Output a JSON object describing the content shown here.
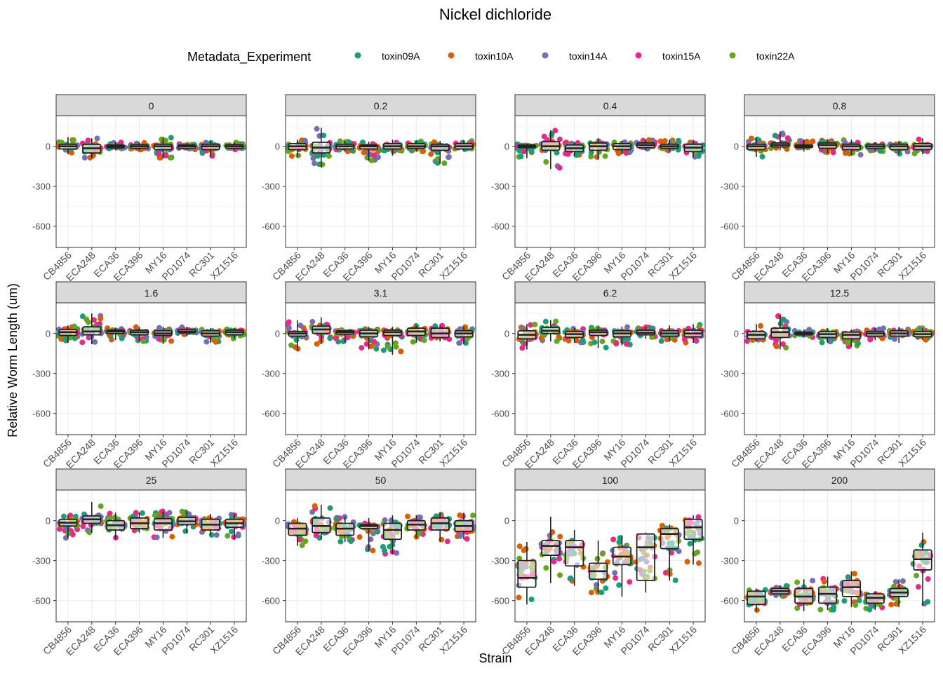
{
  "chart_data": {
    "type": "faceted-box-jitter",
    "title": "Nickel dichloride",
    "xlabel": "Strain",
    "ylabel": "Relative Worm Length (um)",
    "ylim": [
      -760,
      230
    ],
    "yticks": [
      0,
      -300,
      -600
    ],
    "ytick_labels": [
      "0",
      "-300",
      "-600"
    ],
    "categories": [
      "CB4856",
      "ECA248",
      "ECA36",
      "ECA396",
      "MY16",
      "PD1074",
      "RC301",
      "XZ1516"
    ],
    "legend": {
      "title": "Metadata_Experiment",
      "position": "top",
      "entries": [
        {
          "name": "toxin09A",
          "color": "#1b9e77"
        },
        {
          "name": "toxin10A",
          "color": "#d95f02"
        },
        {
          "name": "toxin14A",
          "color": "#7570b3"
        },
        {
          "name": "toxin15A",
          "color": "#e7298a"
        },
        {
          "name": "toxin22A",
          "color": "#66a61e"
        }
      ]
    },
    "facets": [
      {
        "label": "0",
        "medians": [
          0,
          -15,
          0,
          0,
          0,
          0,
          0,
          0
        ],
        "iqr": [
          [
            -20,
            15
          ],
          [
            -50,
            15
          ],
          [
            -12,
            10
          ],
          [
            -15,
            12
          ],
          [
            -25,
            15
          ],
          [
            -15,
            10
          ],
          [
            -25,
            15
          ],
          [
            -15,
            12
          ]
        ],
        "extremes": [
          [
            -60,
            70
          ],
          [
            -90,
            60
          ],
          [
            -30,
            30
          ],
          [
            -30,
            30
          ],
          [
            -90,
            70
          ],
          [
            -30,
            25
          ],
          [
            -80,
            40
          ],
          [
            -30,
            30
          ]
        ]
      },
      {
        "label": "0.2",
        "medians": [
          0,
          -10,
          0,
          0,
          0,
          0,
          0,
          0
        ],
        "iqr": [
          [
            -25,
            20
          ],
          [
            -50,
            30
          ],
          [
            -20,
            15
          ],
          [
            -20,
            10
          ],
          [
            -20,
            20
          ],
          [
            -15,
            20
          ],
          [
            -30,
            15
          ],
          [
            -20,
            20
          ]
        ],
        "extremes": [
          [
            -80,
            50
          ],
          [
            -160,
            140
          ],
          [
            -40,
            40
          ],
          [
            -110,
            35
          ],
          [
            -70,
            50
          ],
          [
            -40,
            40
          ],
          [
            -130,
            40
          ],
          [
            -40,
            45
          ]
        ]
      },
      {
        "label": "0.4",
        "medians": [
          0,
          0,
          -15,
          0,
          0,
          10,
          0,
          -10
        ],
        "iqr": [
          [
            -10,
            10
          ],
          [
            -30,
            35
          ],
          [
            -40,
            10
          ],
          [
            -30,
            25
          ],
          [
            -25,
            20
          ],
          [
            -10,
            25
          ],
          [
            -15,
            15
          ],
          [
            -40,
            15
          ]
        ],
        "extremes": [
          [
            -90,
            20
          ],
          [
            -170,
            120
          ],
          [
            -70,
            30
          ],
          [
            -100,
            60
          ],
          [
            -60,
            40
          ],
          [
            -30,
            50
          ],
          [
            -40,
            50
          ],
          [
            -80,
            50
          ]
        ]
      },
      {
        "label": "0.8",
        "medians": [
          0,
          10,
          0,
          10,
          0,
          0,
          0,
          0
        ],
        "iqr": [
          [
            -25,
            15
          ],
          [
            -5,
            25
          ],
          [
            -10,
            10
          ],
          [
            -15,
            25
          ],
          [
            -25,
            15
          ],
          [
            -15,
            15
          ],
          [
            -25,
            15
          ],
          [
            -25,
            20
          ]
        ],
        "extremes": [
          [
            -80,
            60
          ],
          [
            -30,
            110
          ],
          [
            -40,
            50
          ],
          [
            -50,
            50
          ],
          [
            -70,
            50
          ],
          [
            -40,
            30
          ],
          [
            -60,
            40
          ],
          [
            -60,
            60
          ]
        ]
      },
      {
        "label": "1.6",
        "medians": [
          10,
          15,
          15,
          10,
          0,
          15,
          0,
          10
        ],
        "iqr": [
          [
            -15,
            30
          ],
          [
            -10,
            50
          ],
          [
            0,
            25
          ],
          [
            -10,
            25
          ],
          [
            -15,
            20
          ],
          [
            5,
            30
          ],
          [
            -20,
            20
          ],
          [
            -10,
            25
          ]
        ],
        "extremes": [
          [
            -70,
            60
          ],
          [
            -80,
            150
          ],
          [
            -50,
            40
          ],
          [
            -60,
            50
          ],
          [
            -80,
            50
          ],
          [
            -20,
            50
          ],
          [
            -70,
            40
          ],
          [
            -40,
            40
          ]
        ]
      },
      {
        "label": "3.1",
        "medians": [
          0,
          30,
          10,
          0,
          10,
          15,
          0,
          0
        ],
        "iqr": [
          [
            -20,
            15
          ],
          [
            0,
            55
          ],
          [
            -5,
            20
          ],
          [
            -25,
            25
          ],
          [
            -15,
            25
          ],
          [
            -15,
            40
          ],
          [
            -30,
            40
          ],
          [
            -25,
            20
          ]
        ],
        "extremes": [
          [
            -130,
            100
          ],
          [
            -80,
            120
          ],
          [
            -70,
            30
          ],
          [
            -120,
            50
          ],
          [
            -160,
            50
          ],
          [
            -70,
            60
          ],
          [
            -60,
            60
          ],
          [
            -80,
            50
          ]
        ]
      },
      {
        "label": "6.2",
        "medians": [
          -10,
          20,
          -5,
          10,
          0,
          5,
          0,
          0
        ],
        "iqr": [
          [
            -40,
            20
          ],
          [
            0,
            45
          ],
          [
            -30,
            15
          ],
          [
            -15,
            25
          ],
          [
            -25,
            20
          ],
          [
            -10,
            25
          ],
          [
            -20,
            20
          ],
          [
            -25,
            25
          ]
        ],
        "extremes": [
          [
            -120,
            70
          ],
          [
            -60,
            100
          ],
          [
            -70,
            40
          ],
          [
            -110,
            50
          ],
          [
            -90,
            50
          ],
          [
            -40,
            50
          ],
          [
            -60,
            60
          ],
          [
            -70,
            70
          ]
        ]
      },
      {
        "label": "12.5",
        "medians": [
          -10,
          10,
          0,
          -5,
          -10,
          0,
          0,
          -5
        ],
        "iqr": [
          [
            -40,
            15
          ],
          [
            -30,
            40
          ],
          [
            -10,
            10
          ],
          [
            -30,
            15
          ],
          [
            -40,
            10
          ],
          [
            -20,
            15
          ],
          [
            -20,
            20
          ],
          [
            -25,
            15
          ]
        ],
        "extremes": [
          [
            -60,
            70
          ],
          [
            -120,
            140
          ],
          [
            -30,
            30
          ],
          [
            -70,
            40
          ],
          [
            -100,
            30
          ],
          [
            -50,
            40
          ],
          [
            -70,
            50
          ],
          [
            -50,
            40
          ]
        ]
      },
      {
        "label": "25",
        "medians": [
          -15,
          10,
          -35,
          -20,
          -20,
          -5,
          -30,
          -20
        ],
        "iqr": [
          [
            -40,
            10
          ],
          [
            -20,
            35
          ],
          [
            -70,
            0
          ],
          [
            -60,
            20
          ],
          [
            -70,
            15
          ],
          [
            -30,
            25
          ],
          [
            -70,
            10
          ],
          [
            -50,
            10
          ]
        ],
        "extremes": [
          [
            -130,
            40
          ],
          [
            -90,
            140
          ],
          [
            -140,
            60
          ],
          [
            -90,
            60
          ],
          [
            -130,
            70
          ],
          [
            -90,
            80
          ],
          [
            -110,
            50
          ],
          [
            -140,
            50
          ]
        ]
      },
      {
        "label": "50",
        "medians": [
          -60,
          -40,
          -60,
          -40,
          -70,
          -30,
          -20,
          -40
        ],
        "iqr": [
          [
            -110,
            -20
          ],
          [
            -90,
            20
          ],
          [
            -110,
            -20
          ],
          [
            -60,
            -30
          ],
          [
            -140,
            -20
          ],
          [
            -70,
            0
          ],
          [
            -70,
            20
          ],
          [
            -80,
            0
          ]
        ],
        "extremes": [
          [
            -190,
            20
          ],
          [
            -140,
            120
          ],
          [
            -160,
            30
          ],
          [
            -230,
            20
          ],
          [
            -250,
            40
          ],
          [
            -130,
            40
          ],
          [
            -160,
            60
          ],
          [
            -140,
            60
          ]
        ]
      },
      {
        "label": "100",
        "medians": [
          -430,
          -190,
          -200,
          -380,
          -270,
          -200,
          -100,
          -50
        ],
        "iqr": [
          [
            -500,
            -300
          ],
          [
            -260,
            -150
          ],
          [
            -340,
            -150
          ],
          [
            -440,
            -320
          ],
          [
            -330,
            -200
          ],
          [
            -450,
            -100
          ],
          [
            -210,
            -60
          ],
          [
            -140,
            10
          ]
        ],
        "extremes": [
          [
            -630,
            -160
          ],
          [
            -470,
            30
          ],
          [
            -490,
            -70
          ],
          [
            -540,
            -150
          ],
          [
            -570,
            -110
          ],
          [
            -540,
            -90
          ],
          [
            -450,
            -30
          ],
          [
            -330,
            40
          ]
        ]
      },
      {
        "label": "200",
        "medians": [
          -570,
          -530,
          -570,
          -550,
          -500,
          -580,
          -540,
          -290
        ],
        "iqr": [
          [
            -630,
            -530
          ],
          [
            -550,
            -510
          ],
          [
            -620,
            -510
          ],
          [
            -620,
            -500
          ],
          [
            -570,
            -450
          ],
          [
            -620,
            -550
          ],
          [
            -570,
            -510
          ],
          [
            -370,
            -220
          ]
        ],
        "extremes": [
          [
            -680,
            -510
          ],
          [
            -570,
            -490
          ],
          [
            -680,
            -440
          ],
          [
            -670,
            -420
          ],
          [
            -650,
            -380
          ],
          [
            -670,
            -530
          ],
          [
            -650,
            -440
          ],
          [
            -640,
            -90
          ]
        ]
      }
    ]
  }
}
